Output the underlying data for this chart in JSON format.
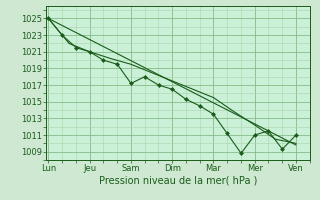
{
  "xlabel": "Pression niveau de la mer( hPa )",
  "bg_color": "#cee8d2",
  "plot_bg_color": "#caf0d8",
  "grid_color_major": "#88bb88",
  "grid_color_minor": "#aad4aa",
  "line_color": "#1a5c1a",
  "ylim": [
    1008.0,
    1026.5
  ],
  "yticks": [
    1009,
    1011,
    1013,
    1015,
    1017,
    1019,
    1021,
    1023,
    1025
  ],
  "xtick_labels": [
    "Lun",
    "Jeu",
    "Sam",
    "Dim",
    "Mar",
    "Mer",
    "Ven"
  ],
  "xtick_positions": [
    0,
    1,
    2,
    3,
    4,
    5,
    6
  ],
  "xlim": [
    -0.05,
    6.35
  ],
  "series1_x": [
    0,
    0.33,
    0.67,
    1.0,
    1.33,
    1.67,
    2.0,
    2.33,
    2.67,
    3.0,
    3.33,
    3.67,
    4.0,
    4.33,
    4.67,
    5.0,
    5.33,
    5.67,
    6.0
  ],
  "series1_y": [
    1025.0,
    1023.0,
    1021.5,
    1021.0,
    1020.0,
    1019.5,
    1017.2,
    1018.0,
    1017.0,
    1016.5,
    1015.3,
    1014.5,
    1013.5,
    1011.2,
    1008.8,
    1011.0,
    1011.5,
    1009.3,
    1011.0
  ],
  "series2_x": [
    0,
    0.5,
    1.0,
    1.5,
    2.0,
    2.5,
    3.0,
    3.5,
    4.0,
    4.5,
    5.0,
    5.5,
    6.0
  ],
  "series2_y": [
    1025.0,
    1022.0,
    1021.0,
    1020.2,
    1019.5,
    1018.5,
    1017.5,
    1016.5,
    1015.5,
    1013.8,
    1012.2,
    1010.5,
    1010.0
  ],
  "trend_x": [
    0,
    6.0
  ],
  "trend_y": [
    1025.0,
    1009.8
  ]
}
